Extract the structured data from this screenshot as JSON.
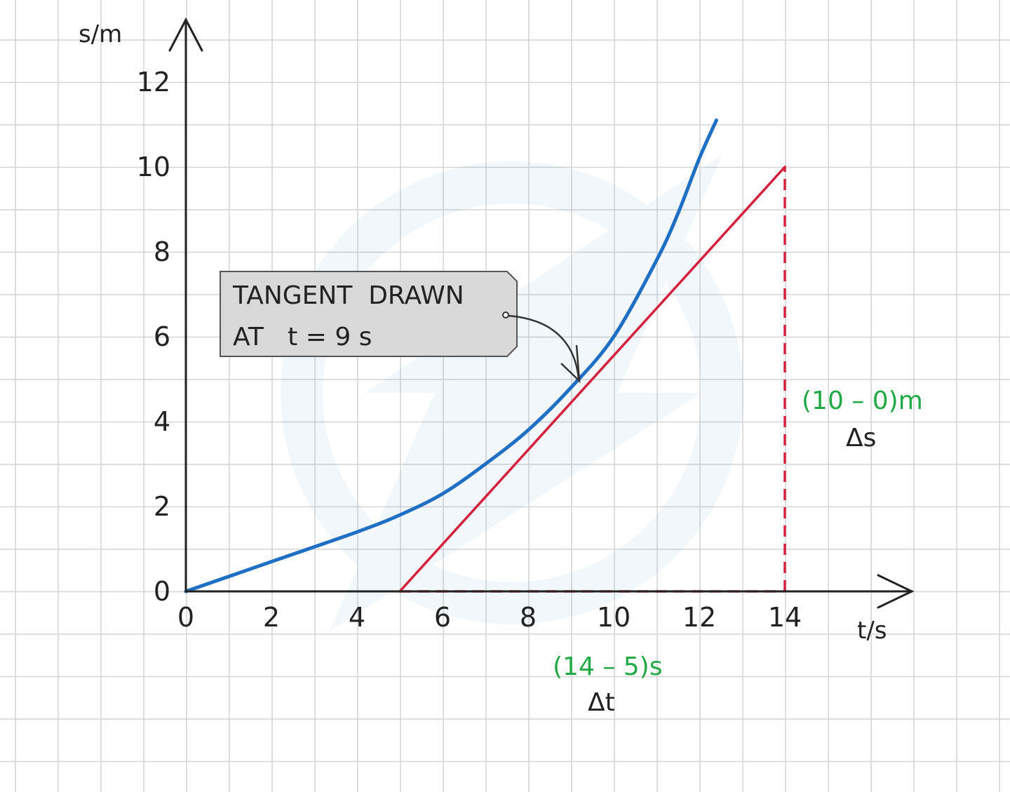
{
  "chart_data": {
    "type": "line",
    "xlabel": "t/s",
    "ylabel": "s/m",
    "xlim": [
      0,
      17
    ],
    "ylim": [
      0,
      12.5
    ],
    "x_ticks": [
      "0",
      "2",
      "4",
      "6",
      "8",
      "10",
      "12",
      "14"
    ],
    "y_ticks": [
      "0",
      "2",
      "4",
      "6",
      "8",
      "10",
      "12"
    ],
    "grid": true,
    "series": [
      {
        "kind": "curve",
        "color": "#1f6fc4",
        "points": [
          [
            0,
            0
          ],
          [
            2,
            0.7
          ],
          [
            4,
            1.4
          ],
          [
            5,
            1.8
          ],
          [
            6,
            2.3
          ],
          [
            7,
            3.0
          ],
          [
            8,
            3.8
          ],
          [
            9,
            4.8
          ],
          [
            10,
            6.0
          ],
          [
            11,
            7.8
          ],
          [
            11.5,
            8.9
          ],
          [
            12,
            10.2
          ],
          [
            12.4,
            11.1
          ]
        ]
      },
      {
        "kind": "tangent",
        "color": "#d4213d",
        "points": [
          [
            5,
            0
          ],
          [
            14,
            10
          ]
        ]
      }
    ],
    "guides": {
      "color": "#d4213d",
      "horizontal": [
        [
          5,
          0
        ],
        [
          14,
          0
        ]
      ],
      "vertical": [
        [
          14,
          0
        ],
        [
          14,
          10
        ]
      ]
    },
    "annotations": {
      "callout_line1": "TANGENT  DRAWN",
      "callout_line2": "AT   t = 9 s",
      "callout_point": [
        9.3,
        4.9
      ],
      "delta_s_expr": "(10 – 0)m",
      "delta_s_label": "Δs",
      "delta_t_expr": "(14 – 5)s",
      "delta_t_label": "Δt"
    }
  }
}
